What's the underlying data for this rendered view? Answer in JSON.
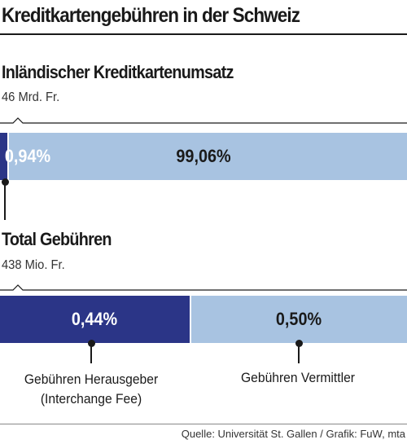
{
  "chart_data": [
    {
      "type": "bar",
      "orientation": "horizontal-stacked",
      "title": "Inländischer Kreditkartenumsatz",
      "subtitle": "46 Mrd. Fr.",
      "segments": [
        {
          "label": "0,94%",
          "value": 0.94,
          "color": "#2b3587",
          "label_color": "#ffffff"
        },
        {
          "label": "99,06%",
          "value": 99.06,
          "color": "#a8c3e1",
          "label_color": "#1a1a1a"
        }
      ]
    },
    {
      "type": "bar",
      "orientation": "horizontal-stacked",
      "title": "Total Gebühren",
      "subtitle": "438 Mio. Fr.",
      "segments": [
        {
          "label": "0,44%",
          "value": 0.44,
          "color": "#2b3587",
          "label_color": "#ffffff",
          "annotation": [
            "Gebühren Herausgeber",
            "(Interchange Fee)"
          ]
        },
        {
          "label": "0,50%",
          "value": 0.5,
          "color": "#a8c3e1",
          "label_color": "#1a1a1a",
          "annotation": [
            "Gebühren Vermittler"
          ]
        }
      ]
    }
  ],
  "header": {
    "title": "Kreditkartengebühren in der Schweiz"
  },
  "footer": {
    "source": "Quelle: Universität St. Gallen / Grafik: FuW, mta"
  }
}
